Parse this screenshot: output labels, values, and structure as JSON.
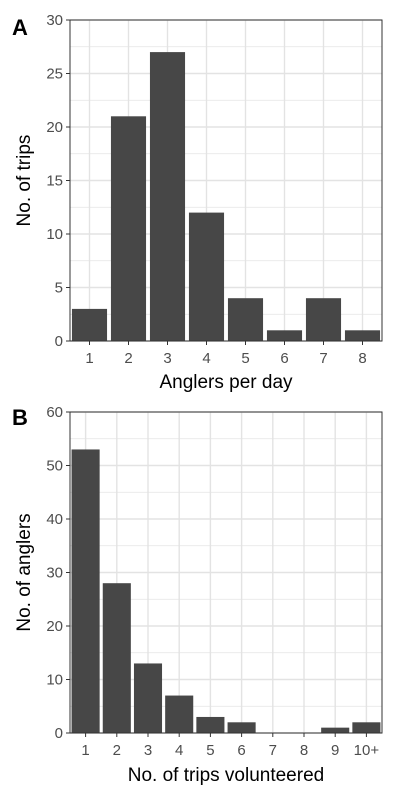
{
  "colors": {
    "bar_fill": "#474747",
    "grid": "#e3e3e3",
    "panel_border": "#333333",
    "tick_text": "#4d4d4d",
    "background": "#ffffff"
  },
  "chart_data": [
    {
      "type": "bar",
      "panel_label": "A",
      "xlabel": "Anglers per day",
      "ylabel": "No. of trips",
      "categories": [
        "1",
        "2",
        "3",
        "4",
        "5",
        "6",
        "7",
        "8"
      ],
      "values": [
        3,
        21,
        27,
        12,
        4,
        1,
        4,
        1
      ],
      "ylim": [
        0,
        30
      ],
      "yticks": [
        0,
        5,
        10,
        15,
        20,
        25,
        30
      ],
      "grid": true,
      "legend": "none"
    },
    {
      "type": "bar",
      "panel_label": "B",
      "xlabel": "No. of trips volunteered",
      "ylabel": "No. of anglers",
      "categories": [
        "1",
        "2",
        "3",
        "4",
        "5",
        "6",
        "7",
        "8",
        "9",
        "10+"
      ],
      "values": [
        53,
        28,
        13,
        7,
        3,
        2,
        0,
        0,
        1,
        2
      ],
      "ylim": [
        0,
        60
      ],
      "yticks": [
        0,
        10,
        20,
        30,
        40,
        50,
        60
      ],
      "grid": true,
      "legend": "none"
    }
  ]
}
